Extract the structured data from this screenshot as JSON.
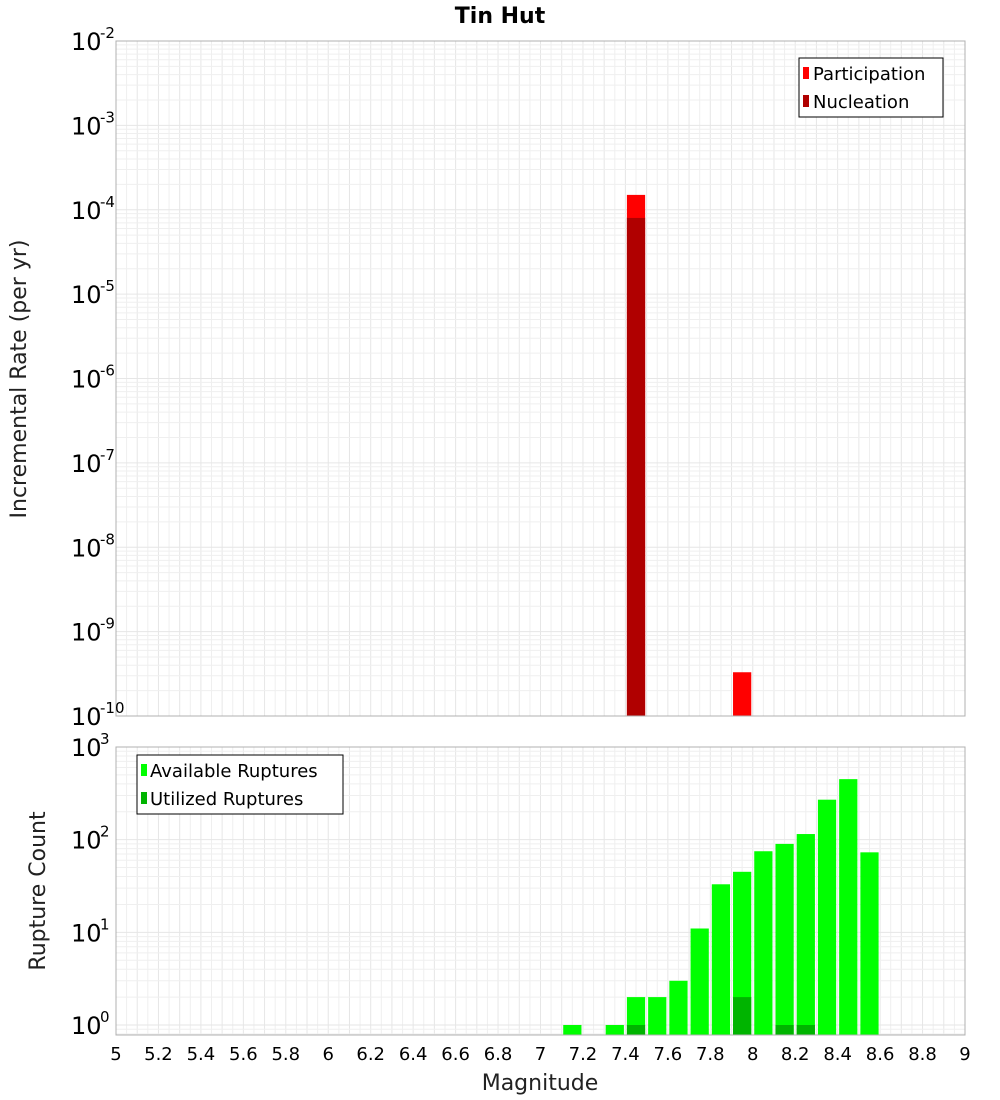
{
  "chart_data": [
    {
      "type": "bar",
      "title": "Tin Hut",
      "xlabel": "",
      "ylabel": "Incremental Rate (per yr)",
      "y_scale": "log",
      "ylim": [
        1e-10,
        0.01
      ],
      "xlim": [
        5,
        9
      ],
      "bin_width": 0.1,
      "grid": true,
      "legend_position": "top-right",
      "y_ticks": [
        {
          "base": "10",
          "exp": "-10"
        },
        {
          "base": "10",
          "exp": "-9"
        },
        {
          "base": "10",
          "exp": "-8"
        },
        {
          "base": "10",
          "exp": "-7"
        },
        {
          "base": "10",
          "exp": "-6"
        },
        {
          "base": "10",
          "exp": "-5"
        },
        {
          "base": "10",
          "exp": "-4"
        },
        {
          "base": "10",
          "exp": "-3"
        },
        {
          "base": "10",
          "exp": "-2"
        }
      ],
      "series": [
        {
          "name": "Participation",
          "color": "#ff0000",
          "x": [
            7.45,
            7.95
          ],
          "values": [
            0.00015,
            3.3e-10
          ]
        },
        {
          "name": "Nucleation",
          "color": "#b00000",
          "x": [
            7.45
          ],
          "values": [
            8e-05
          ]
        }
      ]
    },
    {
      "type": "bar",
      "title": "",
      "xlabel": "Magnitude",
      "ylabel": "Rupture Count",
      "y_scale": "log",
      "ylim": [
        0.78,
        1000
      ],
      "xlim": [
        5,
        9
      ],
      "bin_width": 0.1,
      "grid": true,
      "legend_position": "top-left",
      "y_ticks": [
        {
          "base": "10",
          "exp": "0"
        },
        {
          "base": "10",
          "exp": "1"
        },
        {
          "base": "10",
          "exp": "2"
        },
        {
          "base": "10",
          "exp": "3"
        }
      ],
      "x_ticks": [
        "5",
        "5.2",
        "5.4",
        "5.6",
        "5.8",
        "6",
        "6.2",
        "6.4",
        "6.6",
        "6.8",
        "7",
        "7.2",
        "7.4",
        "7.6",
        "7.8",
        "8",
        "8.2",
        "8.4",
        "8.6",
        "8.8",
        "9"
      ],
      "series": [
        {
          "name": "Available Ruptures",
          "color": "#00ff00",
          "x": [
            7.15,
            7.35,
            7.45,
            7.55,
            7.65,
            7.75,
            7.85,
            7.95,
            8.05,
            8.15,
            8.25,
            8.35,
            8.45,
            8.55
          ],
          "values": [
            1,
            1,
            2,
            2,
            3,
            11,
            33,
            45,
            75,
            90,
            115,
            270,
            450,
            73
          ]
        },
        {
          "name": "Utilized Ruptures",
          "color": "#00b400",
          "x": [
            7.45,
            7.95,
            8.15,
            8.25
          ],
          "values": [
            1,
            2,
            1,
            1
          ]
        }
      ]
    }
  ]
}
